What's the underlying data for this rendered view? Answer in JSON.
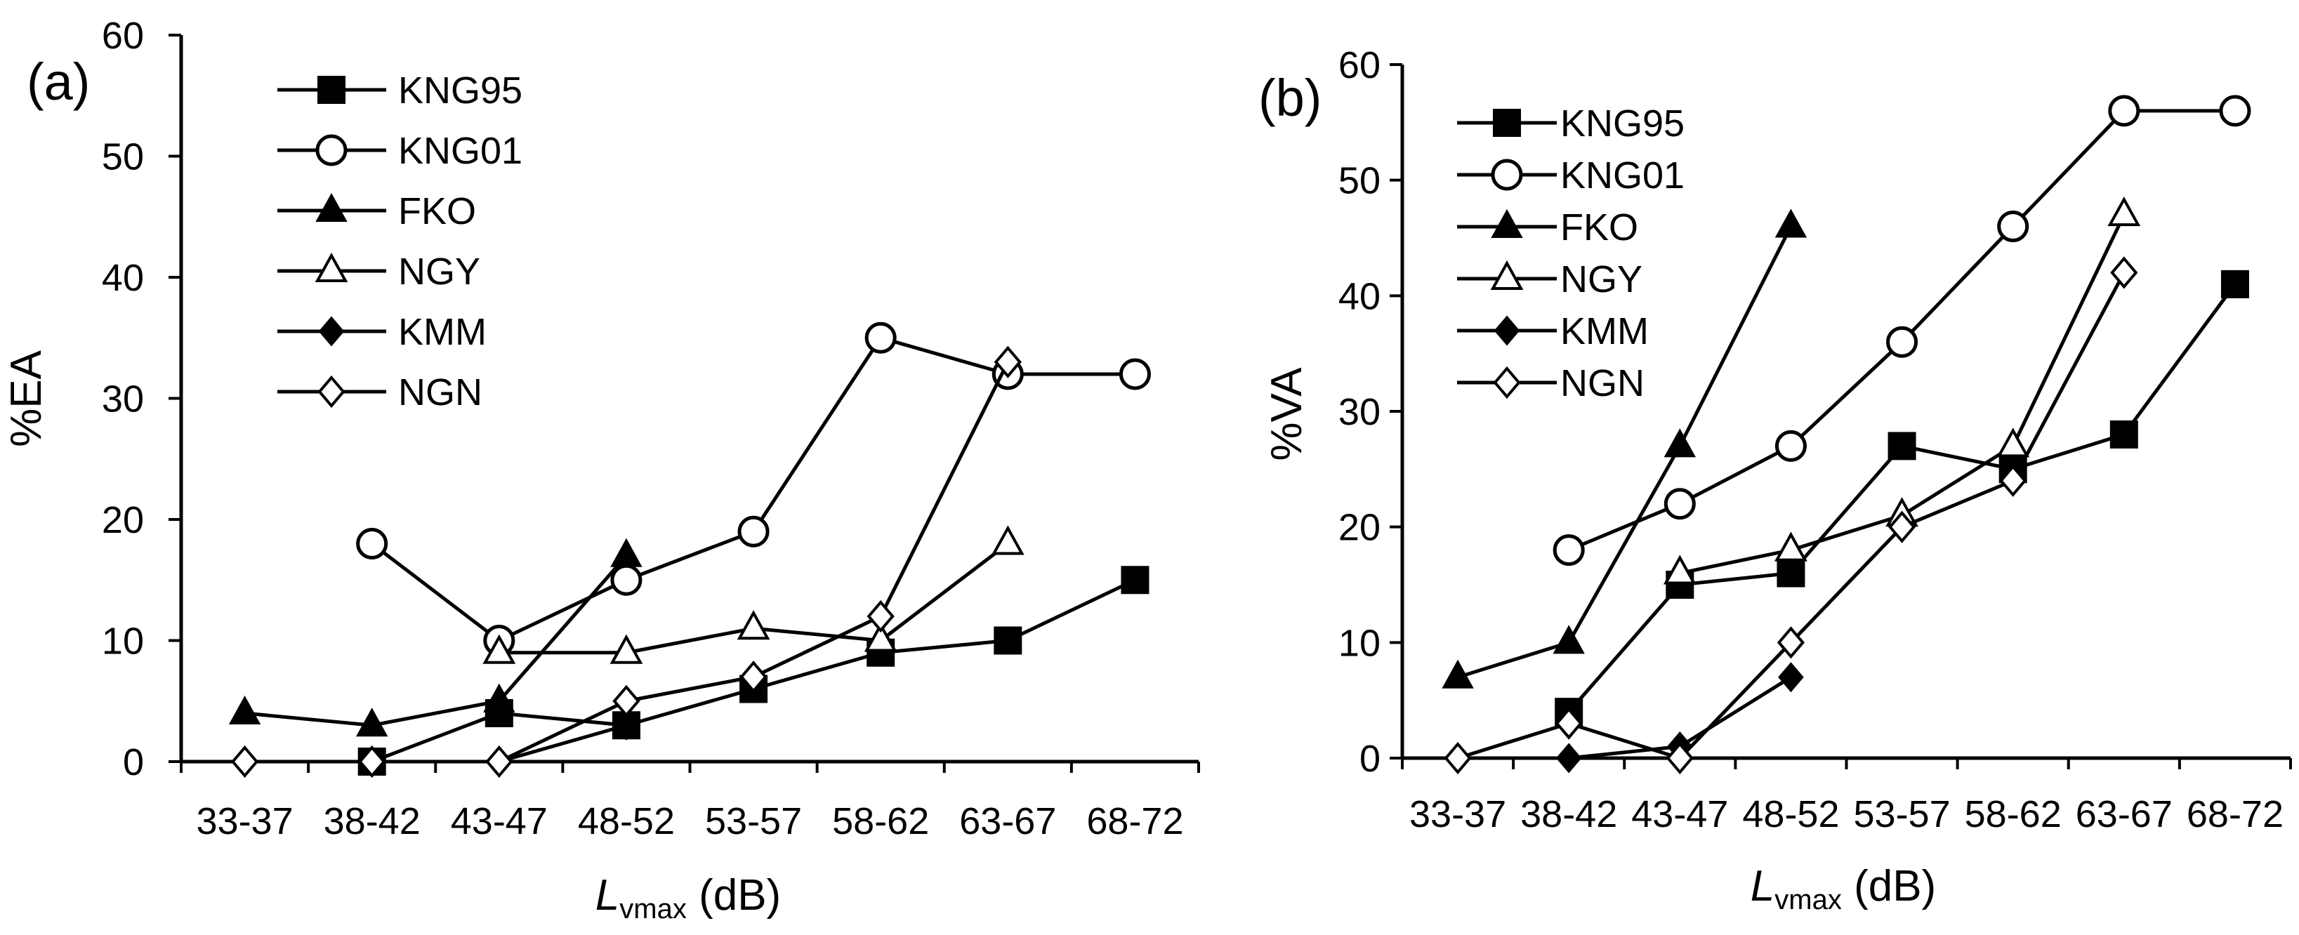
{
  "chart_data": [
    {
      "panel_label": "(a)",
      "type": "line",
      "categories": [
        "33-37",
        "38-42",
        "43-47",
        "48-52",
        "53-57",
        "58-62",
        "63-67",
        "68-72"
      ],
      "ylim": [
        0,
        60
      ],
      "yticks": [
        "0",
        "10",
        "20",
        "30",
        "40",
        "50",
        "60"
      ],
      "ylabel": "%EA",
      "xlabel_main": "L",
      "xlabel_sub": "vmax",
      "xlabel_unit": " (dB)",
      "legend_position": "top-left",
      "series": [
        {
          "name": "KNG95",
          "marker": "square-filled",
          "values": [
            null,
            0,
            4,
            3,
            6,
            9,
            10,
            15
          ]
        },
        {
          "name": "KNG01",
          "marker": "circle-open",
          "values": [
            null,
            18,
            10,
            15,
            19,
            35,
            32,
            32
          ]
        },
        {
          "name": "FKO",
          "marker": "triangle-filled",
          "values": [
            4,
            3,
            5,
            17,
            null,
            null,
            null,
            null
          ]
        },
        {
          "name": "NGY",
          "marker": "triangle-open",
          "values": [
            null,
            null,
            9,
            9,
            11,
            10,
            18,
            null
          ]
        },
        {
          "name": "KMM",
          "marker": "diamond-filled",
          "values": [
            null,
            0,
            0,
            3,
            null,
            null,
            null,
            null
          ]
        },
        {
          "name": "NGN",
          "marker": "diamond-open",
          "values": [
            0,
            0,
            0,
            5,
            7,
            12,
            33,
            null
          ]
        }
      ]
    },
    {
      "panel_label": "(b)",
      "type": "line",
      "categories": [
        "33-37",
        "38-42",
        "43-47",
        "48-52",
        "53-57",
        "58-62",
        "63-67",
        "68-72"
      ],
      "ylim": [
        0,
        60
      ],
      "yticks": [
        "0",
        "10",
        "20",
        "30",
        "40",
        "50",
        "60"
      ],
      "ylabel": "%VA",
      "xlabel_main": "L",
      "xlabel_sub": "vmax",
      "xlabel_unit": " (dB)",
      "legend_position": "top-left",
      "series": [
        {
          "name": "KNG95",
          "marker": "square-filled",
          "values": [
            null,
            4,
            15,
            16,
            27,
            25,
            28,
            41
          ]
        },
        {
          "name": "KNG01",
          "marker": "circle-open",
          "values": [
            null,
            18,
            22,
            27,
            36,
            46,
            56,
            56
          ]
        },
        {
          "name": "FKO",
          "marker": "triangle-filled",
          "values": [
            7,
            10,
            27,
            46,
            null,
            null,
            null,
            null
          ]
        },
        {
          "name": "NGY",
          "marker": "triangle-open",
          "values": [
            null,
            null,
            16,
            18,
            21,
            27,
            47,
            null
          ]
        },
        {
          "name": "KMM",
          "marker": "diamond-filled",
          "values": [
            null,
            0,
            1,
            7,
            null,
            null,
            null,
            null
          ]
        },
        {
          "name": "NGN",
          "marker": "diamond-open",
          "values": [
            0,
            3,
            0,
            10,
            20,
            24,
            42,
            null
          ]
        }
      ]
    }
  ]
}
